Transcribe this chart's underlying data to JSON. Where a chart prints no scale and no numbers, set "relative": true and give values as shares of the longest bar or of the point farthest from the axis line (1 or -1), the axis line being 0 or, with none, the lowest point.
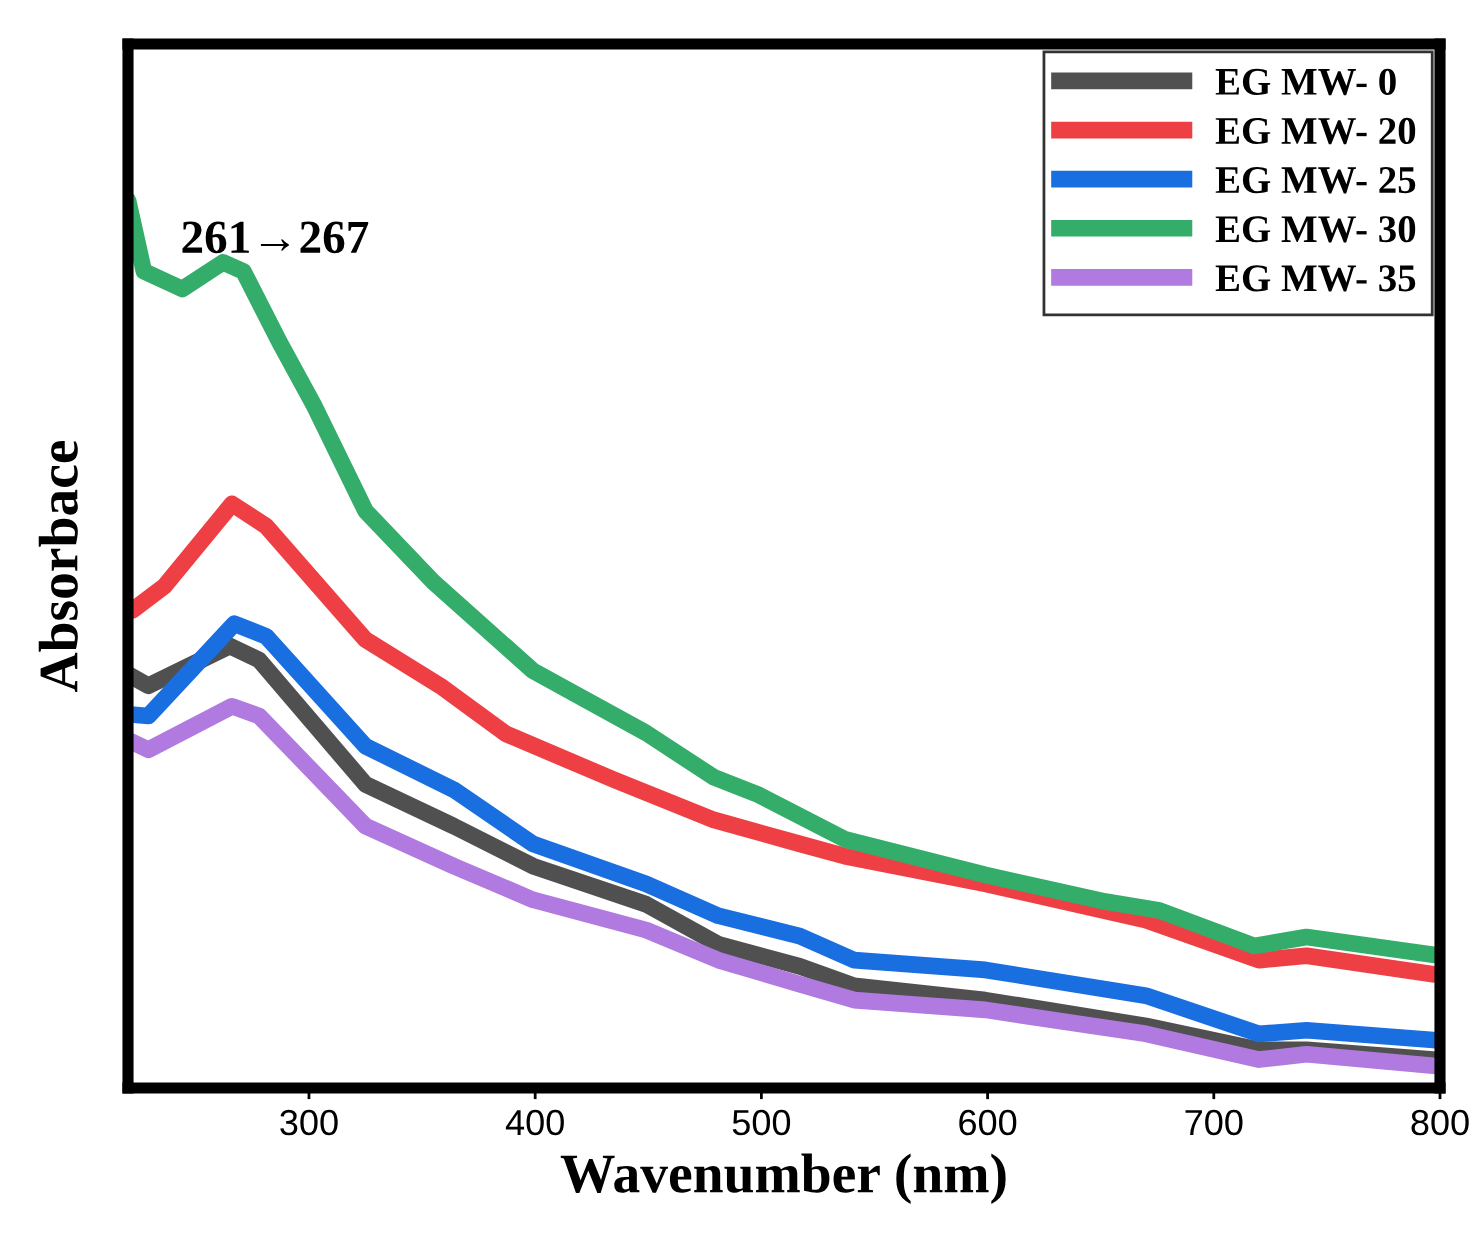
{
  "chart_data": {
    "type": "line",
    "relative": true,
    "xlabel": "Wavenumber (nm)",
    "ylabel": "Absorbace",
    "annotations": [
      "261→267"
    ],
    "xlim": [
      220,
      800
    ],
    "xticks": [
      300,
      400,
      500,
      600,
      700,
      800
    ],
    "grid": false,
    "legend": "top right",
    "marker": "none",
    "line_style": "solid",
    "series": [
      {
        "name": "EG MW- 0",
        "color": "#505050",
        "x": [
          220,
          229,
          265,
          278,
          325,
          364,
          399,
          449,
          481,
          517,
          541,
          599,
          670,
          720,
          741,
          797
        ],
        "values": [
          0.466,
          0.453,
          0.498,
          0.482,
          0.342,
          0.295,
          0.25,
          0.207,
          0.162,
          0.137,
          0.115,
          0.099,
          0.07,
          0.043,
          0.043,
          0.032
        ]
      },
      {
        "name": "EG MW- 20",
        "color": "#ee4044",
        "x": [
          222,
          236,
          266,
          281,
          325,
          358,
          387,
          435,
          479,
          517,
          537,
          599,
          670,
          720,
          741,
          797
        ],
        "values": [
          0.538,
          0.565,
          0.658,
          0.633,
          0.505,
          0.453,
          0.399,
          0.347,
          0.302,
          0.275,
          0.261,
          0.23,
          0.189,
          0.144,
          0.149,
          0.128
        ]
      },
      {
        "name": "EG MW- 25",
        "color": "#1a6fe0",
        "x": [
          220,
          229,
          267,
          281,
          325,
          364,
          399,
          449,
          481,
          517,
          541,
          599,
          670,
          720,
          741,
          797
        ],
        "values": [
          0.421,
          0.419,
          0.523,
          0.509,
          0.385,
          0.336,
          0.275,
          0.23,
          0.194,
          0.171,
          0.144,
          0.133,
          0.104,
          0.061,
          0.065,
          0.054
        ]
      },
      {
        "name": "EG MW- 30",
        "color": "#34ad6a",
        "x": [
          220,
          227,
          244,
          262,
          271,
          287,
          302,
          325,
          355,
          399,
          449,
          479,
          499,
          537,
          599,
          652,
          676,
          718,
          741,
          797
        ],
        "values": [
          1.0,
          0.92,
          0.9,
          0.93,
          0.92,
          0.84,
          0.77,
          0.65,
          0.57,
          0.47,
          0.4,
          0.35,
          0.33,
          0.28,
          0.24,
          0.21,
          0.2,
          0.16,
          0.17,
          0.15
        ]
      },
      {
        "name": "EG MW- 35",
        "color": "#b07ae0",
        "x": [
          220,
          229,
          266,
          278,
          325,
          364,
          399,
          449,
          481,
          517,
          541,
          599,
          670,
          720,
          741,
          797
        ],
        "values": [
          0.392,
          0.381,
          0.43,
          0.419,
          0.295,
          0.25,
          0.212,
          0.178,
          0.144,
          0.117,
          0.099,
          0.088,
          0.061,
          0.032,
          0.038,
          0.025
        ]
      }
    ]
  }
}
